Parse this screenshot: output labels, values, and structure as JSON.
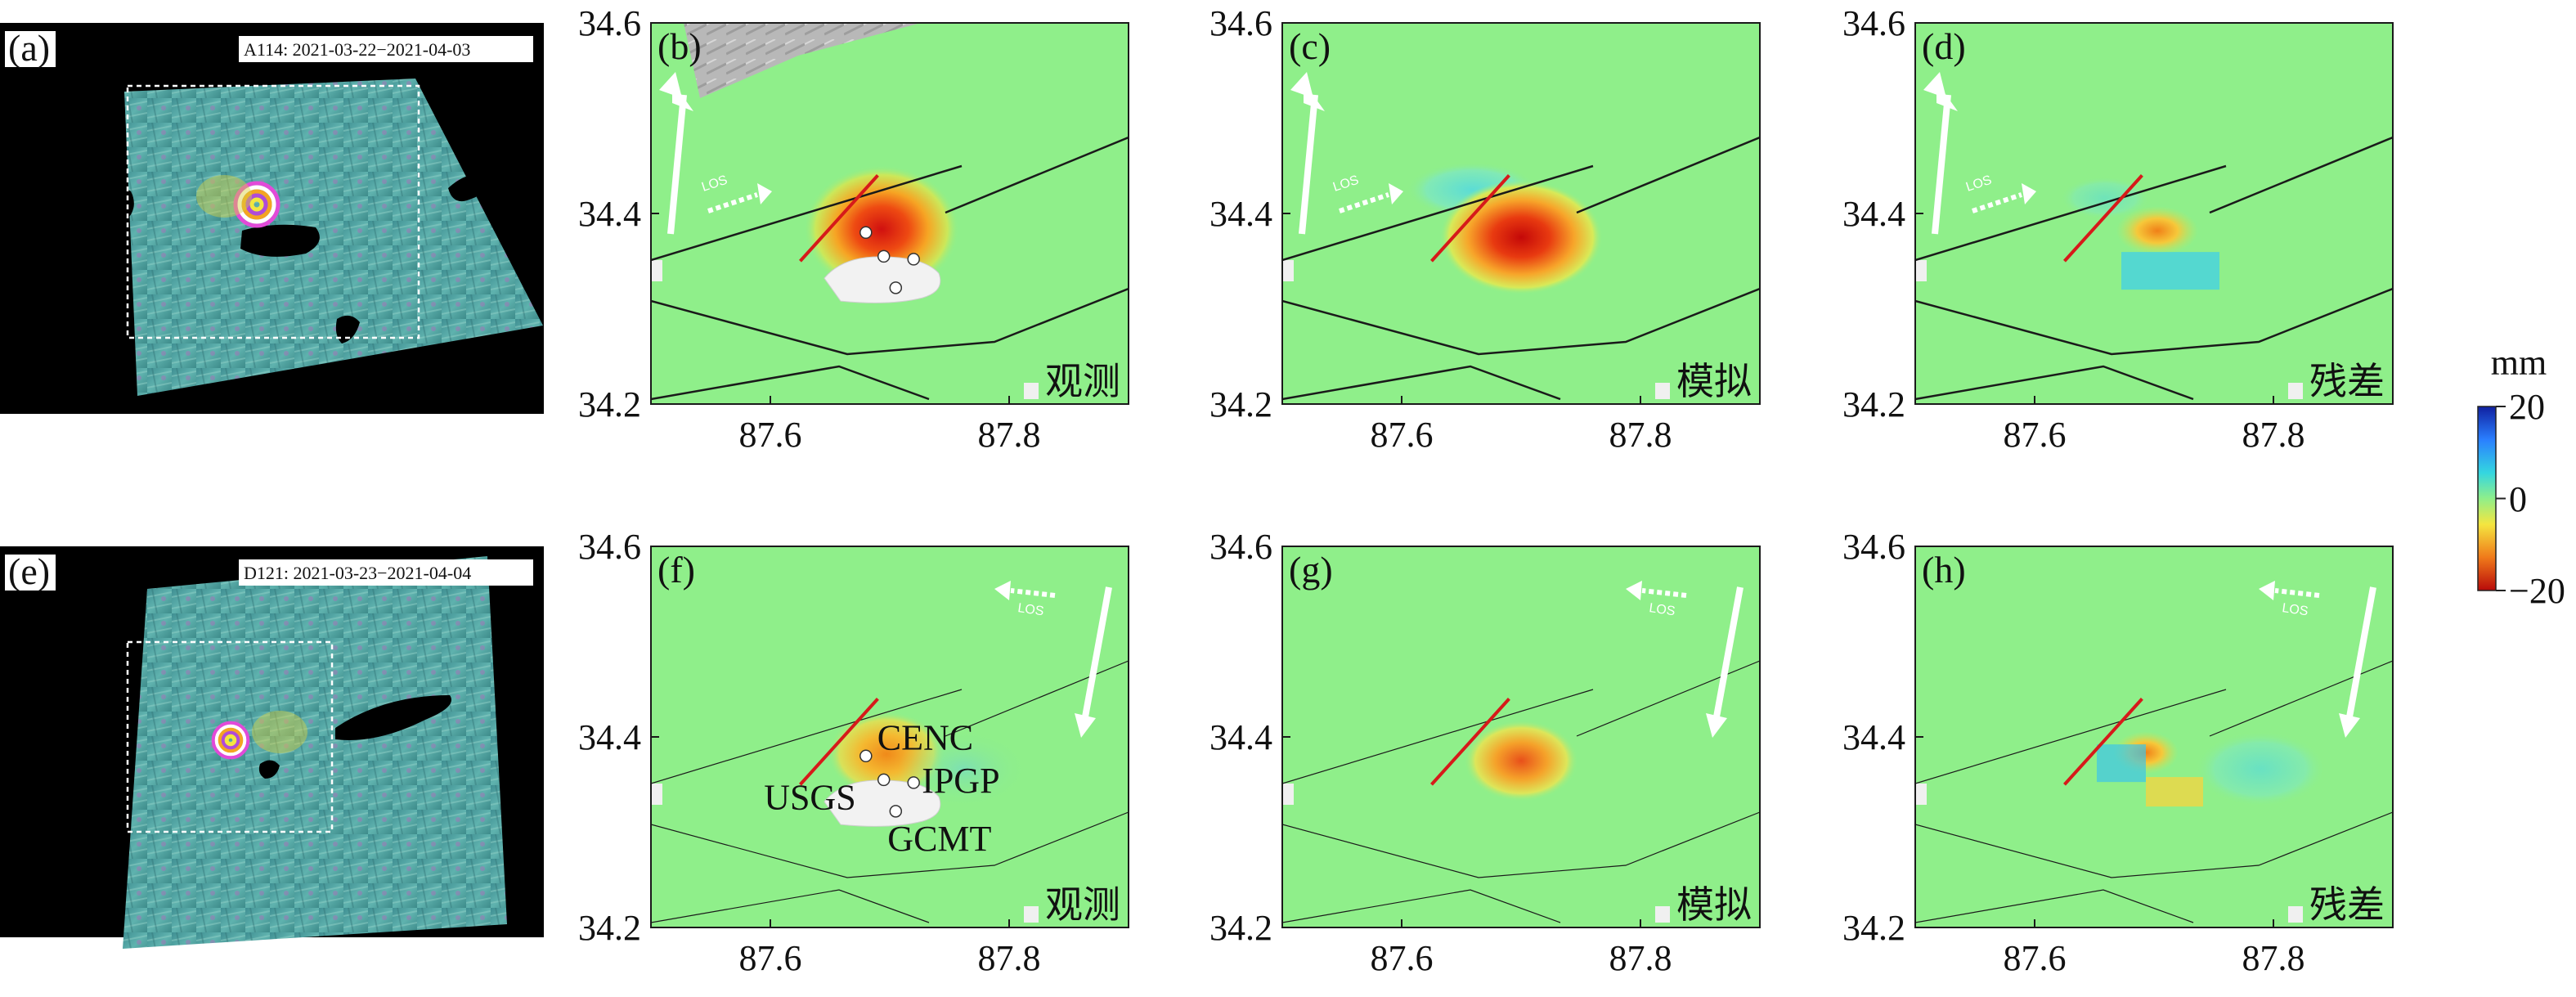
{
  "overviews": [
    {
      "id": "a",
      "letter": "(a)",
      "title": "A114: 2021-03-22−2021-04-03"
    },
    {
      "id": "e",
      "letter": "(e)",
      "title": "D121: 2021-03-23−2021-04-04"
    }
  ],
  "panels": [
    {
      "id": "b",
      "letter": "(b)",
      "label": "观测",
      "kind": "obs",
      "track": "asc"
    },
    {
      "id": "c",
      "letter": "(c)",
      "label": "模拟",
      "kind": "model",
      "track": "asc"
    },
    {
      "id": "d",
      "letter": "(d)",
      "label": "残差",
      "kind": "resid",
      "track": "asc"
    },
    {
      "id": "f",
      "letter": "(f)",
      "label": "观测",
      "kind": "obs",
      "track": "desc"
    },
    {
      "id": "g",
      "letter": "(g)",
      "label": "模拟",
      "kind": "model",
      "track": "desc"
    },
    {
      "id": "h",
      "letter": "(h)",
      "label": "残差",
      "kind": "resid",
      "track": "desc"
    }
  ],
  "axes": {
    "x_ticks": [
      "87.6",
      "87.8"
    ],
    "y_ticks": [
      "34.2",
      "34.4",
      "34.6"
    ],
    "xlim": [
      87.5,
      87.9
    ],
    "ylim": [
      34.2,
      34.6
    ]
  },
  "los_label": "LOS",
  "colorbar": {
    "unit": "mm",
    "ticks": [
      "20",
      "0",
      "−20"
    ],
    "range": [
      -20,
      20
    ],
    "colors": [
      "#1020a0",
      "#2a7fff",
      "#34d6e0",
      "#8fef8a",
      "#f4e640",
      "#f07a1a",
      "#b80a0a"
    ]
  },
  "solutions": [
    {
      "name": "CENC",
      "lon": 87.68,
      "lat": 34.38
    },
    {
      "name": "IPGP",
      "lon": 87.72,
      "lat": 34.352
    },
    {
      "name": "USGS",
      "lon": 87.695,
      "lat": 34.355
    },
    {
      "name": "GCMT",
      "lon": 87.705,
      "lat": 34.322
    }
  ],
  "fault_trace": {
    "start": [
      87.625,
      34.35
    ],
    "end": [
      87.69,
      34.44
    ]
  }
}
